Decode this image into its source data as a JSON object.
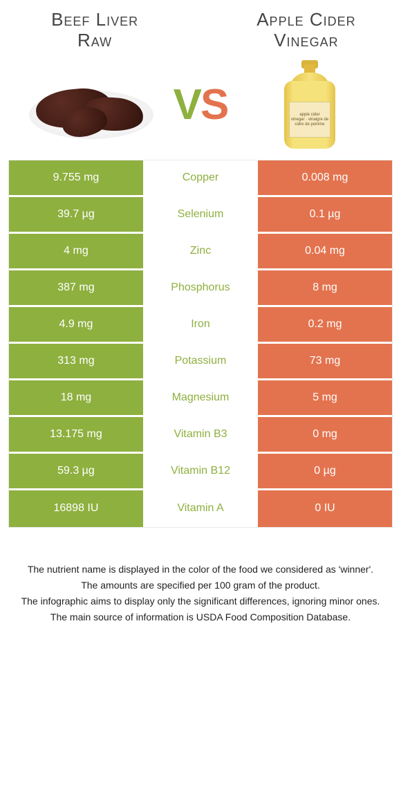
{
  "left_food": {
    "title_line1": "Beef Liver",
    "title_line2": "Raw",
    "accent": "#8eb03f"
  },
  "right_food": {
    "title_line1": "Apple Cider",
    "title_line2": "Vinegar",
    "accent": "#e3734e"
  },
  "vs": {
    "v": "V",
    "s": "S"
  },
  "bottle_label": {
    "l1": "apple cider",
    "l2": "vinegar · vinaigre de",
    "l3": "cidre de pomme"
  },
  "colors": {
    "left_cell": "#8eb03f",
    "right_cell": "#e3734e",
    "mid_text_default": "#8eb03f"
  },
  "rows": [
    {
      "left": "9.755 mg",
      "label": "Copper",
      "right": "0.008 mg",
      "winner": "left"
    },
    {
      "left": "39.7 µg",
      "label": "Selenium",
      "right": "0.1 µg",
      "winner": "left"
    },
    {
      "left": "4 mg",
      "label": "Zinc",
      "right": "0.04 mg",
      "winner": "left"
    },
    {
      "left": "387 mg",
      "label": "Phosphorus",
      "right": "8 mg",
      "winner": "left"
    },
    {
      "left": "4.9 mg",
      "label": "Iron",
      "right": "0.2 mg",
      "winner": "left"
    },
    {
      "left": "313 mg",
      "label": "Potassium",
      "right": "73 mg",
      "winner": "left"
    },
    {
      "left": "18 mg",
      "label": "Magnesium",
      "right": "5 mg",
      "winner": "left"
    },
    {
      "left": "13.175 mg",
      "label": "Vitamin B3",
      "right": "0 mg",
      "winner": "left"
    },
    {
      "left": "59.3 µg",
      "label": "Vitamin B12",
      "right": "0 µg",
      "winner": "left"
    },
    {
      "left": "16898 IU",
      "label": "Vitamin A",
      "right": "0 IU",
      "winner": "left"
    }
  ],
  "footnotes": [
    "The nutrient name is displayed in the color of the food we considered as 'winner'.",
    "The amounts are specified per 100 gram of the product.",
    "The infographic aims to display only the significant differences, ignoring minor ones.",
    "The main source of information is USDA Food Composition Database."
  ]
}
